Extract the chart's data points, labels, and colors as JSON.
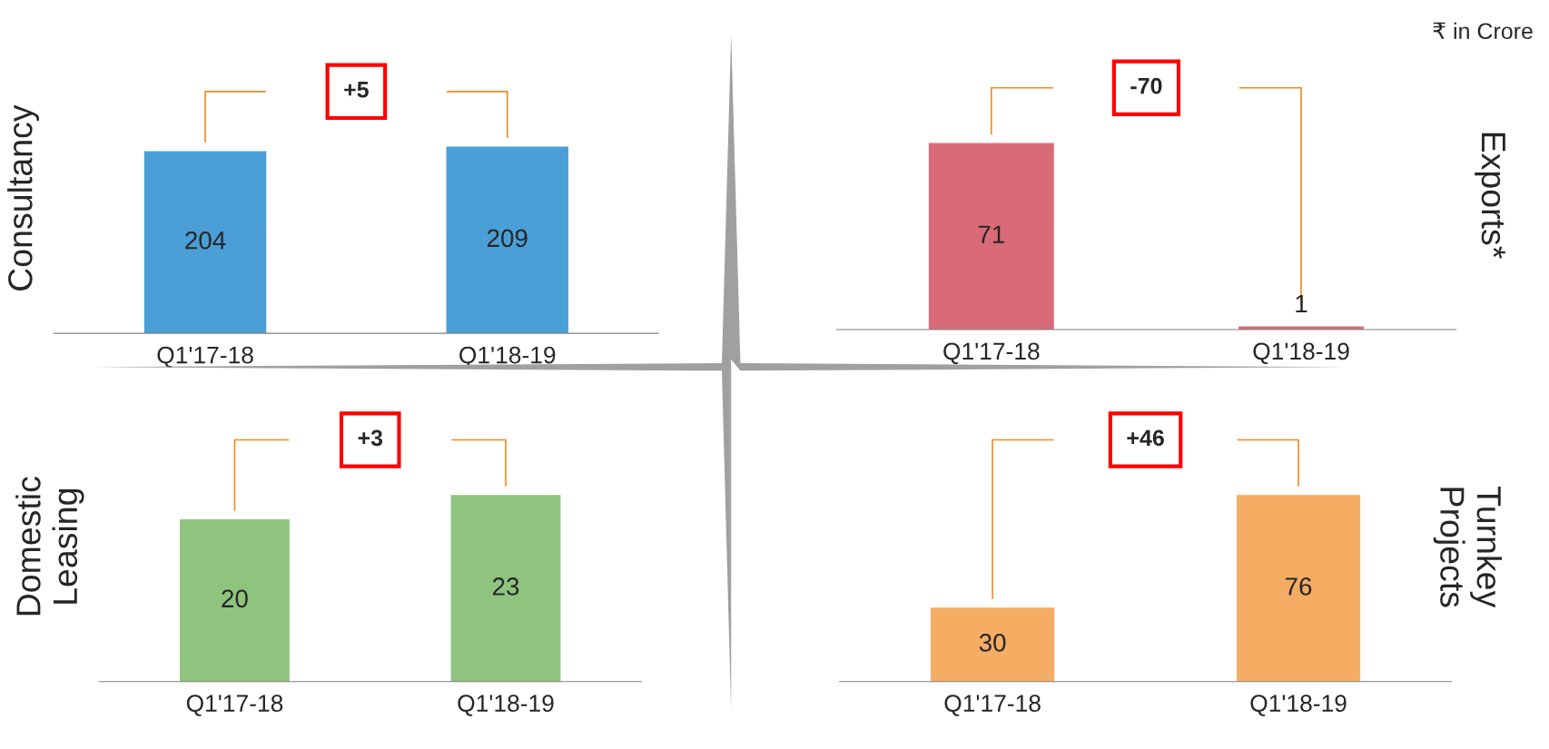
{
  "chart_data": [
    {
      "type": "bar",
      "ylabel": "Consultancy",
      "categories": [
        "Q1'17-18",
        "Q1'18-19"
      ],
      "values": [
        204,
        209
      ],
      "color": "#4a9fd6",
      "data_labels": true,
      "annotations": [
        "+5"
      ]
    },
    {
      "type": "bar",
      "ylabel": "Exports*",
      "categories": [
        "Q1'17-18",
        "Q1'18-19"
      ],
      "values": [
        71,
        1
      ],
      "color": "#d96b78",
      "data_labels": true,
      "annotations": [
        "-70",
        "₹ in Crore"
      ]
    },
    {
      "type": "bar",
      "ylabel": "Domestic\nLeasing",
      "categories": [
        "Q1'17-18",
        "Q1'18-19"
      ],
      "values": [
        20,
        23
      ],
      "color": "#8fc47f",
      "data_labels": true,
      "annotations": [
        "+3"
      ]
    },
    {
      "type": "bar",
      "ylabel": "Turnkey\nProjects",
      "categories": [
        "Q1'17-18",
        "Q1'18-19"
      ],
      "values": [
        30,
        76
      ],
      "color": "#f5ad64",
      "data_labels": true,
      "annotations": [
        "+46"
      ]
    }
  ]
}
